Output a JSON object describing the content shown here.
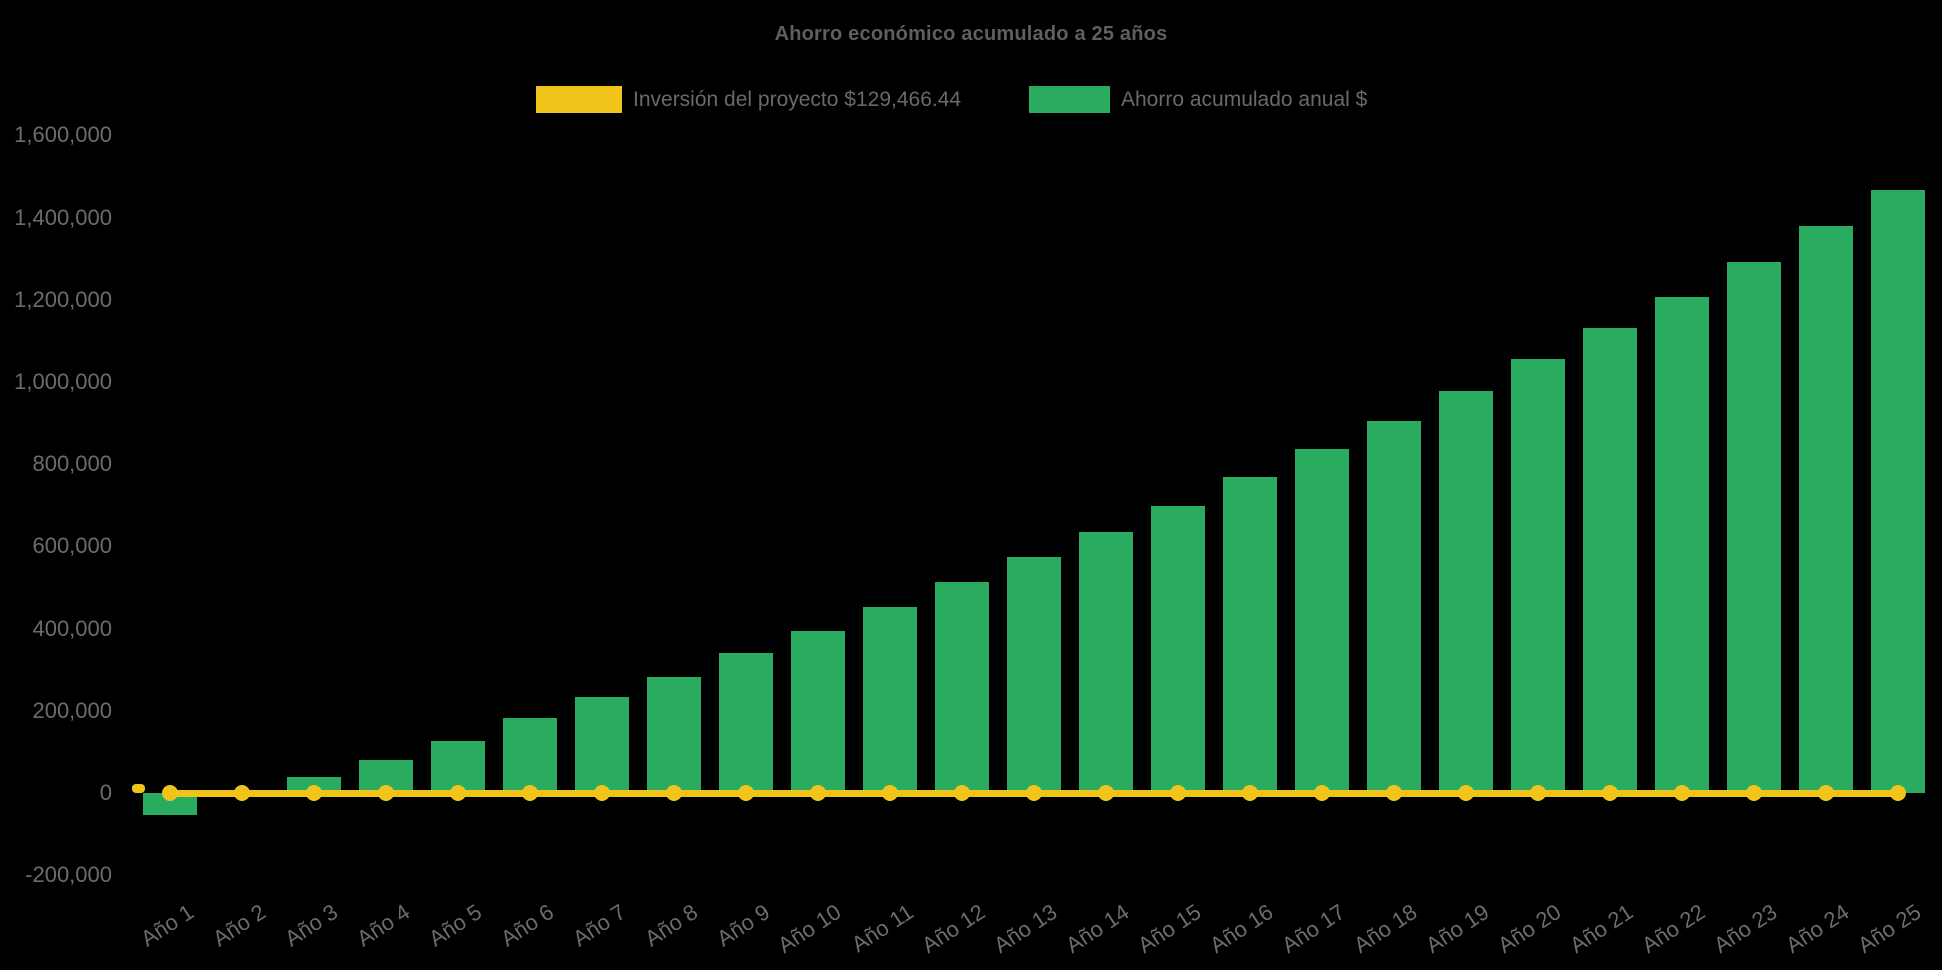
{
  "title": "Ahorro económico acumulado a 25 años",
  "colors": {
    "background": "#000000",
    "bar_green": "#2AAC60",
    "line_yellow": "#F0C419",
    "title_text": "#5F5F5F",
    "axis_text": "#6C6C6C",
    "legend_text": "#696969"
  },
  "legend": [
    {
      "label": "Inversión del proyecto $129,466.44",
      "color": "#F0C419"
    },
    {
      "label": "Ahorro acumulado anual $",
      "color": "#2AAC60"
    }
  ],
  "chart_data": {
    "type": "bar",
    "title": "Ahorro económico acumulado a 25 años",
    "xlabel": "",
    "ylabel": "",
    "ylim": [
      -200000,
      1600000
    ],
    "y_ticks": [
      1600000,
      1400000,
      1200000,
      1000000,
      800000,
      600000,
      400000,
      200000,
      0,
      -200000
    ],
    "grid": false,
    "legend_position": "top",
    "categories": [
      "Año 1",
      "Año 2",
      "Año 3",
      "Año 4",
      "Año 5",
      "Año 6",
      "Año 7",
      "Año 8",
      "Año 9",
      "Año 10",
      "Año 11",
      "Año 12",
      "Año 13",
      "Año 14",
      "Año 15",
      "Año 16",
      "Año 17",
      "Año 18",
      "Año 19",
      "Año 20",
      "Año 21",
      "Año 22",
      "Año 23",
      "Año 24",
      "Año 25"
    ],
    "series": [
      {
        "name": "Ahorro acumulado anual $",
        "type": "bar",
        "color": "#2AAC60",
        "values": [
          -54000,
          -10000,
          40000,
          80000,
          127000,
          183000,
          234000,
          283000,
          341000,
          395000,
          452000,
          513000,
          574000,
          636000,
          699000,
          768000,
          837000,
          906000,
          978000,
          1056000,
          1132000,
          1207000,
          1293000,
          1380000,
          1467000
        ]
      },
      {
        "name": "Inversión del proyecto $129,466.44",
        "type": "line",
        "color": "#F0C419",
        "marker": "circle",
        "stated_amount": 129466.44,
        "values": [
          0,
          0,
          0,
          0,
          0,
          0,
          0,
          0,
          0,
          0,
          0,
          0,
          0,
          0,
          0,
          0,
          0,
          0,
          0,
          0,
          0,
          0,
          0,
          0,
          0
        ]
      }
    ]
  }
}
